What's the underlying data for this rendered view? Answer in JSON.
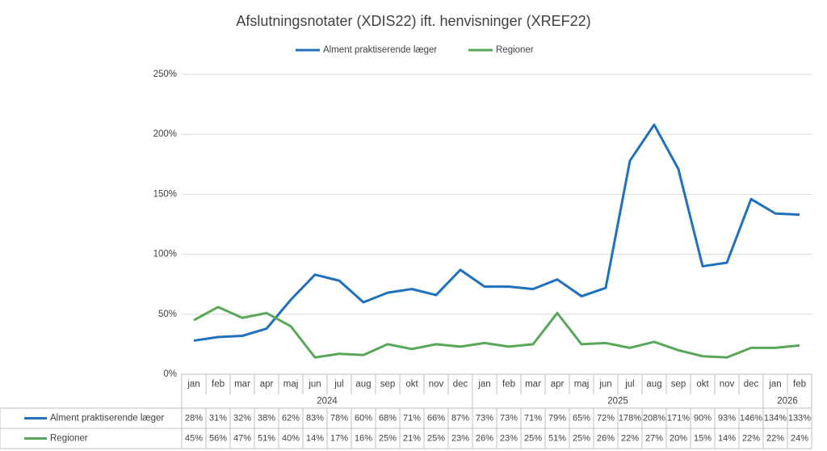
{
  "chart_data": {
    "type": "line",
    "title": "Afslutningsnotater (XDIS22) ift. henvisninger (XREF22)",
    "category_groups": [
      {
        "label": "2024",
        "months": [
          "jan",
          "feb",
          "mar",
          "apr",
          "maj",
          "jun",
          "jul",
          "aug",
          "sep",
          "okt",
          "nov",
          "dec"
        ]
      },
      {
        "label": "2025",
        "months": [
          "jan",
          "feb",
          "mar",
          "apr",
          "maj",
          "jun",
          "jul",
          "aug",
          "sep",
          "okt",
          "nov",
          "dec"
        ]
      },
      {
        "label": "2026",
        "months": [
          "jan",
          "feb"
        ]
      }
    ],
    "series": [
      {
        "name": "Alment praktiserende læger",
        "color": "#1f70bd",
        "values": [
          28,
          31,
          32,
          38,
          62,
          83,
          78,
          60,
          68,
          71,
          66,
          87,
          73,
          73,
          71,
          79,
          65,
          72,
          178,
          208,
          171,
          90,
          93,
          146,
          134,
          133
        ],
        "value_labels": [
          "28%",
          "31%",
          "32%",
          "38%",
          "62%",
          "83%",
          "78%",
          "60%",
          "68%",
          "71%",
          "66%",
          "87%",
          "73%",
          "73%",
          "71%",
          "79%",
          "65%",
          "72%",
          "178%",
          "208%",
          "171%",
          "90%",
          "93%",
          "146%",
          "134%",
          "133%"
        ]
      },
      {
        "name": "Regioner",
        "color": "#5aa65a",
        "values": [
          45,
          56,
          47,
          51,
          40,
          14,
          17,
          16,
          25,
          21,
          25,
          23,
          26,
          23,
          25,
          51,
          25,
          26,
          22,
          27,
          20,
          15,
          14,
          22,
          22,
          24
        ],
        "value_labels": [
          "45%",
          "56%",
          "47%",
          "51%",
          "40%",
          "14%",
          "17%",
          "16%",
          "25%",
          "21%",
          "25%",
          "23%",
          "26%",
          "23%",
          "25%",
          "51%",
          "25%",
          "26%",
          "22%",
          "27%",
          "20%",
          "15%",
          "14%",
          "22%",
          "22%",
          "24%"
        ]
      }
    ],
    "ylim": [
      0,
      250
    ],
    "yticks": [
      {
        "value": 0,
        "label": "0%"
      },
      {
        "value": 50,
        "label": "50%"
      },
      {
        "value": 100,
        "label": "100%"
      },
      {
        "value": 150,
        "label": "150%"
      },
      {
        "value": 200,
        "label": "200%"
      },
      {
        "value": 250,
        "label": "250%"
      }
    ],
    "grid": true
  }
}
